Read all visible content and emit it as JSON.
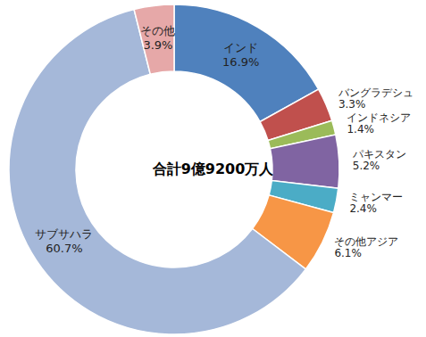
{
  "chart_data": {
    "type": "pie",
    "annotation": "合計9億9200万人",
    "categories": [
      "インド",
      "バングラデシュ",
      "インドネシア",
      "パキスタン",
      "ミャンマー",
      "その他アジア",
      "サブサハラ",
      "その他"
    ],
    "values": [
      16.9,
      3.3,
      1.4,
      5.2,
      2.4,
      6.1,
      60.7,
      3.9
    ],
    "value_labels": [
      "16.9%",
      "3.3%",
      "1.4%",
      "5.2%",
      "2.4%",
      "6.1%",
      "60.7%",
      "3.9%"
    ],
    "colors": [
      "#4f81bd",
      "#c0504d",
      "#9bbb59",
      "#8064a2",
      "#4bacc6",
      "#f79646",
      "#a5b8d9",
      "#e6a8a8"
    ],
    "data_labels": true
  }
}
